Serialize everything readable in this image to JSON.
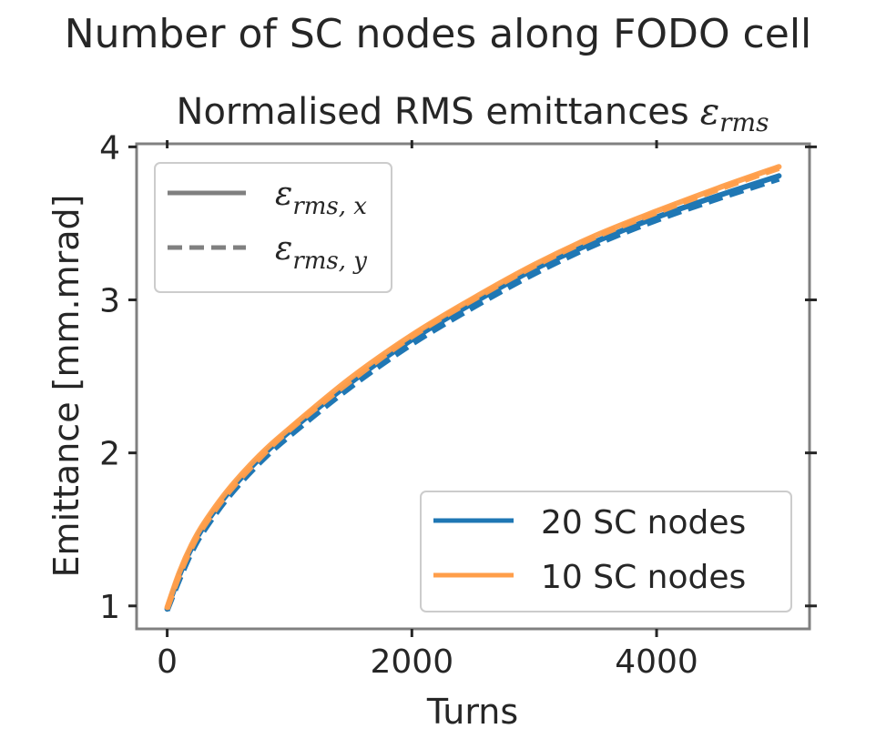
{
  "figure": {
    "suptitle": "Number of SC nodes along FODO cell"
  },
  "chart_data": {
    "type": "line",
    "title": "Normalised RMS emittances",
    "title_symbol": "ε",
    "title_subscript": "rms",
    "xlabel": "Turns",
    "ylabel": "Emittance [mm.mrad]",
    "xlim": [
      -250,
      5250
    ],
    "ylim": [
      0.85,
      4.02
    ],
    "xticks": [
      0,
      2000,
      4000
    ],
    "yticks": [
      1,
      2,
      3,
      4
    ],
    "grid": false,
    "style_legend": {
      "position": "top-left",
      "entries": [
        {
          "symbol": "ε",
          "subscript": "rms, x",
          "linestyle": "solid"
        },
        {
          "symbol": "ε",
          "subscript": "rms, y",
          "linestyle": "dashed"
        }
      ]
    },
    "series_legend": {
      "position": "bottom-right"
    },
    "series": [
      {
        "name": "20 SC nodes",
        "color": "#1f77b4",
        "x": [
          0,
          100,
          200,
          300,
          500,
          750,
          1000,
          1500,
          2000,
          2500,
          3000,
          3500,
          4000,
          4500,
          5000
        ],
        "emittance_x": [
          0.98,
          1.2,
          1.38,
          1.52,
          1.74,
          1.96,
          2.14,
          2.46,
          2.74,
          2.98,
          3.2,
          3.38,
          3.54,
          3.68,
          3.81
        ],
        "emittance_y": [
          0.97,
          1.17,
          1.35,
          1.49,
          1.71,
          1.93,
          2.11,
          2.43,
          2.71,
          2.95,
          3.17,
          3.36,
          3.52,
          3.66,
          3.79
        ]
      },
      {
        "name": "10 SC nodes",
        "color": "#ff9e4a",
        "x": [
          0,
          100,
          200,
          300,
          500,
          750,
          1000,
          1500,
          2000,
          2500,
          3000,
          3500,
          4000,
          4500,
          5000
        ],
        "emittance_x": [
          0.99,
          1.22,
          1.4,
          1.54,
          1.76,
          1.98,
          2.16,
          2.49,
          2.77,
          3.01,
          3.23,
          3.42,
          3.58,
          3.73,
          3.87
        ],
        "emittance_y": [
          0.98,
          1.2,
          1.38,
          1.52,
          1.74,
          1.96,
          2.15,
          2.47,
          2.76,
          3.0,
          3.22,
          3.41,
          3.57,
          3.72,
          3.86
        ]
      }
    ]
  }
}
